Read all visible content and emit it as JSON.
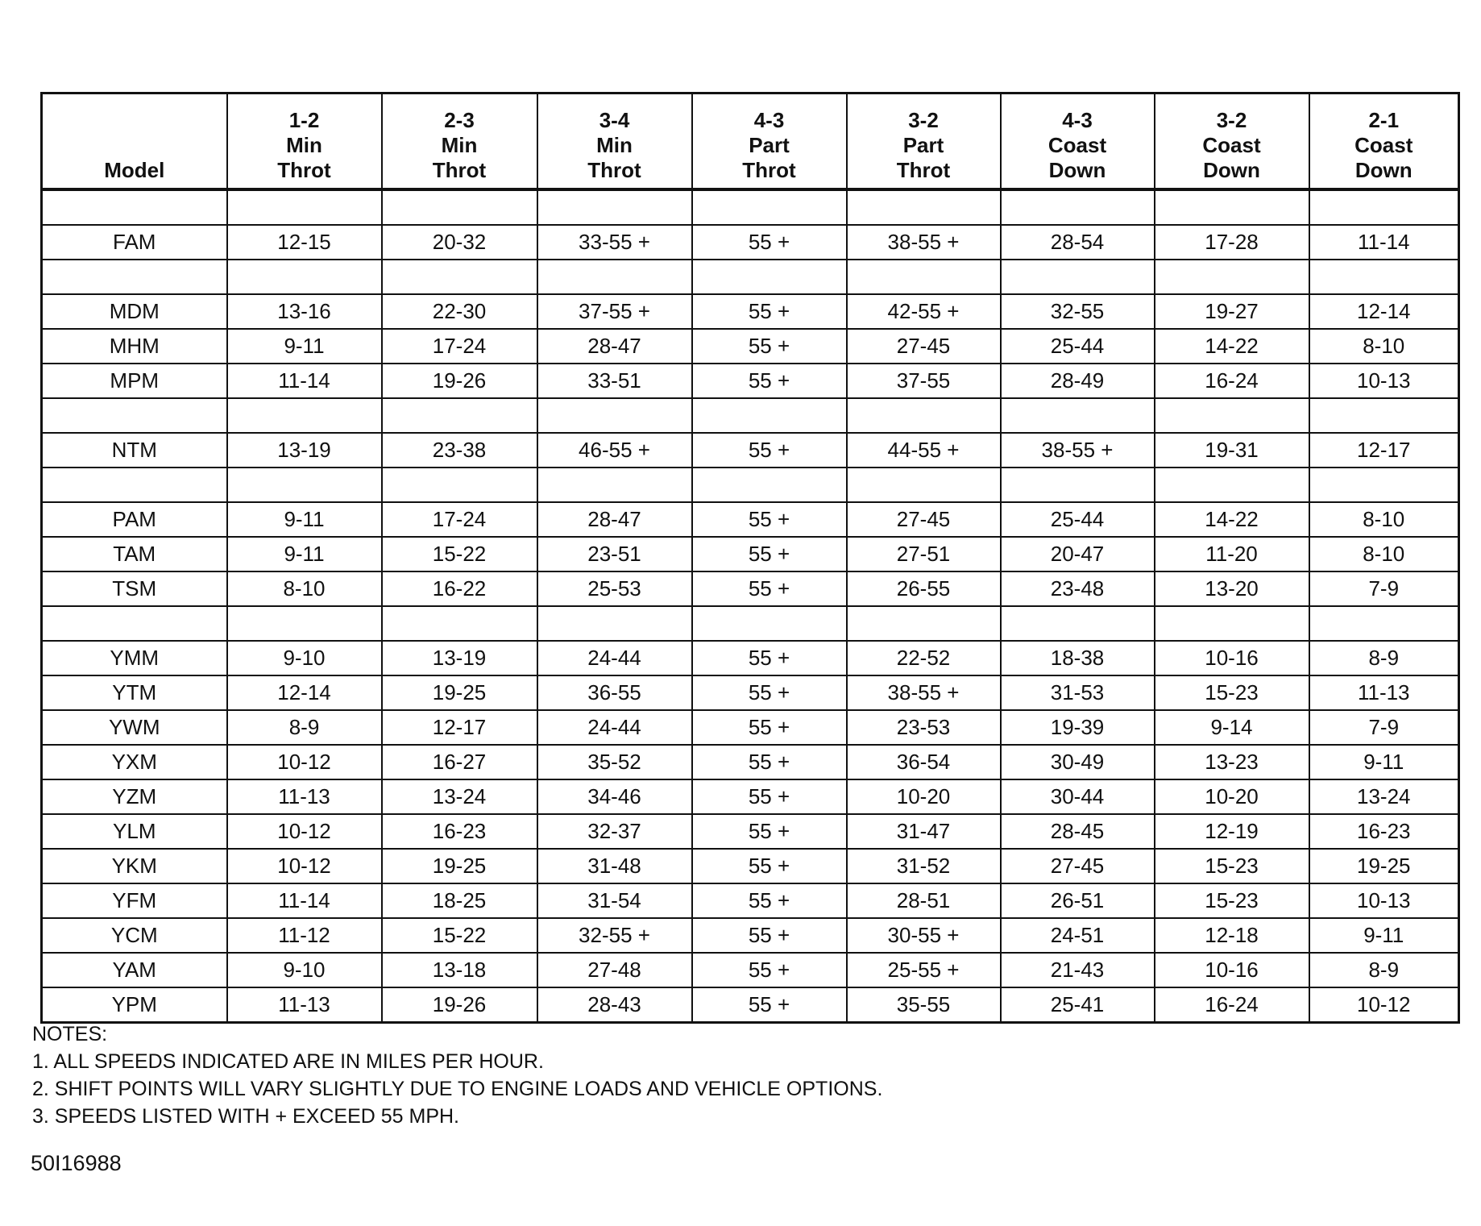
{
  "table": {
    "headers": [
      [
        "Model"
      ],
      [
        "1-2",
        "Min",
        "Throt"
      ],
      [
        "2-3",
        "Min",
        "Throt"
      ],
      [
        "3-4",
        "Min",
        "Throt"
      ],
      [
        "4-3",
        "Part",
        "Throt"
      ],
      [
        "3-2",
        "Part",
        "Throt"
      ],
      [
        "4-3",
        "Coast",
        "Down"
      ],
      [
        "3-2",
        "Coast",
        "Down"
      ],
      [
        "2-1",
        "Coast",
        "Down"
      ]
    ],
    "rows": [
      [],
      [
        "FAM",
        "12-15",
        "20-32",
        "33-55 +",
        "55 +",
        "38-55 +",
        "28-54",
        "17-28",
        "11-14"
      ],
      [],
      [
        "MDM",
        "13-16",
        "22-30",
        "37-55 +",
        "55 +",
        "42-55 +",
        "32-55",
        "19-27",
        "12-14"
      ],
      [
        "MHM",
        "9-11",
        "17-24",
        "28-47",
        "55 +",
        "27-45",
        "25-44",
        "14-22",
        "8-10"
      ],
      [
        "MPM",
        "11-14",
        "19-26",
        "33-51",
        "55 +",
        "37-55",
        "28-49",
        "16-24",
        "10-13"
      ],
      [],
      [
        "NTM",
        "13-19",
        "23-38",
        "46-55 +",
        "55 +",
        "44-55 +",
        "38-55 +",
        "19-31",
        "12-17"
      ],
      [],
      [
        "PAM",
        "9-11",
        "17-24",
        "28-47",
        "55 +",
        "27-45",
        "25-44",
        "14-22",
        "8-10"
      ],
      [
        "TAM",
        "9-11",
        "15-22",
        "23-51",
        "55 +",
        "27-51",
        "20-47",
        "11-20",
        "8-10"
      ],
      [
        "TSM",
        "8-10",
        "16-22",
        "25-53",
        "55 +",
        "26-55",
        "23-48",
        "13-20",
        "7-9"
      ],
      [],
      [
        "YMM",
        "9-10",
        "13-19",
        "24-44",
        "55 +",
        "22-52",
        "18-38",
        "10-16",
        "8-9"
      ],
      [
        "YTM",
        "12-14",
        "19-25",
        "36-55",
        "55 +",
        "38-55 +",
        "31-53",
        "15-23",
        "11-13"
      ],
      [
        "YWM",
        "8-9",
        "12-17",
        "24-44",
        "55 +",
        "23-53",
        "19-39",
        "9-14",
        "7-9"
      ],
      [
        "YXM",
        "10-12",
        "16-27",
        "35-52",
        "55 +",
        "36-54",
        "30-49",
        "13-23",
        "9-11"
      ],
      [
        "YZM",
        "11-13",
        "13-24",
        "34-46",
        "55 +",
        "10-20",
        "30-44",
        "10-20",
        "13-24"
      ],
      [
        "YLM",
        "10-12",
        "16-23",
        "32-37",
        "55 +",
        "31-47",
        "28-45",
        "12-19",
        "16-23"
      ],
      [
        "YKM",
        "10-12",
        "19-25",
        "31-48",
        "55 +",
        "31-52",
        "27-45",
        "15-23",
        "19-25"
      ],
      [
        "YFM",
        "11-14",
        "18-25",
        "31-54",
        "55 +",
        "28-51",
        "26-51",
        "15-23",
        "10-13"
      ],
      [
        "YCM",
        "11-12",
        "15-22",
        "32-55 +",
        "55 +",
        "30-55 +",
        "24-51",
        "12-18",
        "9-11"
      ],
      [
        "YAM",
        "9-10",
        "13-18",
        "27-48",
        "55 +",
        "25-55 +",
        "21-43",
        "10-16",
        "8-9"
      ],
      [
        "YPM",
        "11-13",
        "19-26",
        "28-43",
        "55 +",
        "35-55",
        "25-41",
        "16-24",
        "10-12"
      ]
    ]
  },
  "notes": {
    "title": "NOTES:",
    "items": [
      "1.  ALL SPEEDS INDICATED ARE IN MILES PER HOUR.",
      "2.  SHIFT POINTS WILL VARY SLIGHTLY DUE TO ENGINE LOADS AND VEHICLE OPTIONS.",
      "3.  SPEEDS LISTED WITH  +  EXCEED 55 MPH."
    ]
  },
  "figure_code": "50I16988"
}
